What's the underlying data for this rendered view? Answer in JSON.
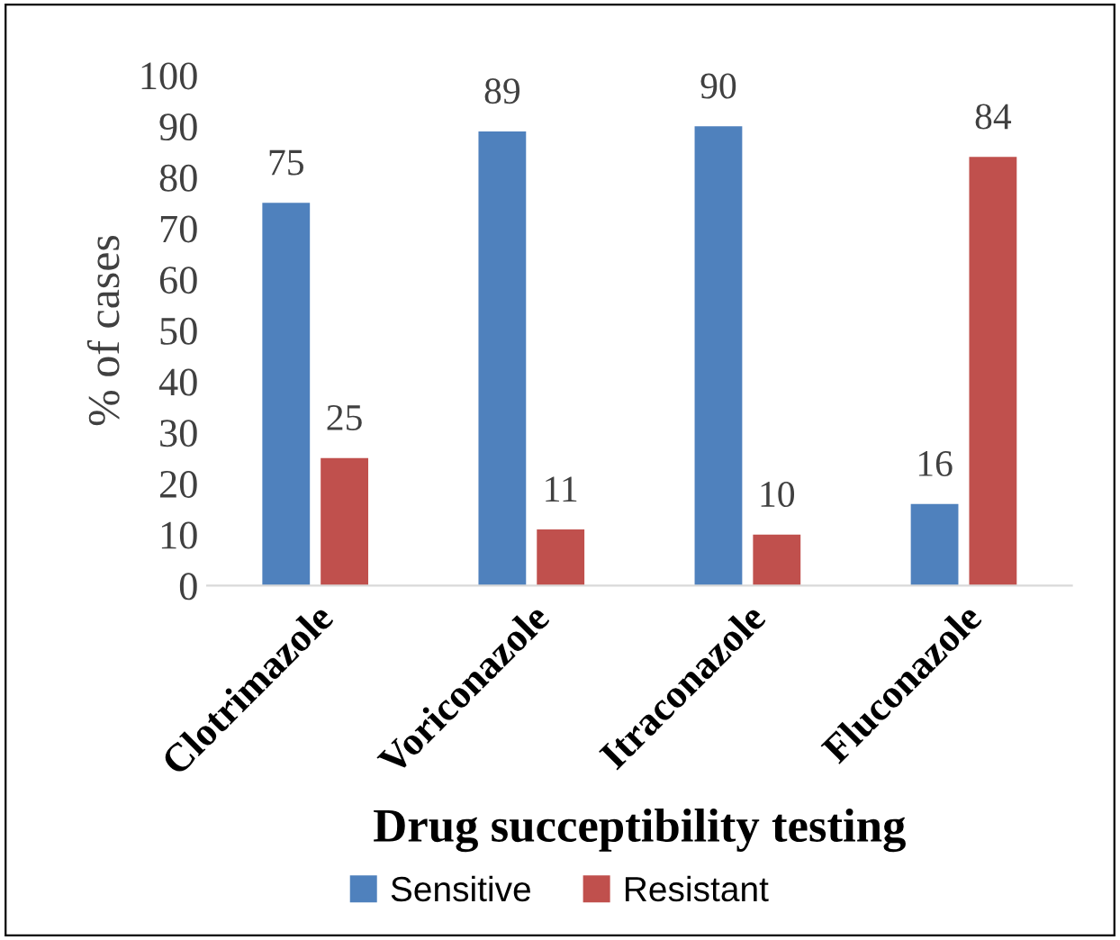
{
  "chart_data": {
    "type": "bar",
    "xlabel": "Drug succeptibility testing",
    "ylabel": "% of cases",
    "categories": [
      "Clotrimazole",
      "Voriconazole",
      "Itraconazole",
      "Fluconazole"
    ],
    "series": [
      {
        "name": "Sensitive",
        "color": "#4f81bd",
        "values": [
          75,
          89,
          90,
          16
        ]
      },
      {
        "name": "Resistant",
        "color": "#c0504d",
        "values": [
          25,
          11,
          10,
          84
        ]
      }
    ],
    "ylim": [
      0,
      100
    ],
    "yticks": [
      0,
      10,
      20,
      30,
      40,
      50,
      60,
      70,
      80,
      90,
      100
    ],
    "data_labels": true,
    "legend": "bottom",
    "grid": false
  }
}
